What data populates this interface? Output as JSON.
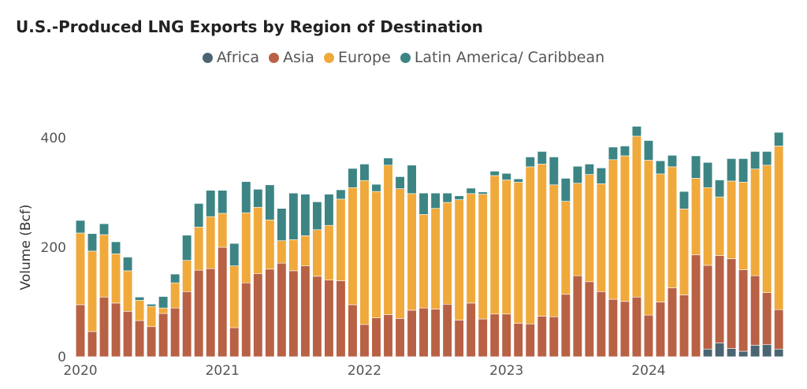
{
  "chart_data": {
    "type": "bar",
    "stacked": true,
    "title": "U.S.-Produced LNG Exports by Region of Destination",
    "xlabel": "",
    "ylabel": "Volume (Bcf)",
    "ylim": [
      0,
      430
    ],
    "yticks": [
      "0",
      "200",
      "400"
    ],
    "xticks": [
      "2020",
      "2021",
      "2022",
      "2023",
      "2024"
    ],
    "grid": false,
    "legend_position": "top-center",
    "start_month": "2020-01",
    "categories": [
      "2020-01",
      "2020-02",
      "2020-03",
      "2020-04",
      "2020-05",
      "2020-06",
      "2020-07",
      "2020-08",
      "2020-09",
      "2020-10",
      "2020-11",
      "2020-12",
      "2021-01",
      "2021-02",
      "2021-03",
      "2021-04",
      "2021-05",
      "2021-06",
      "2021-07",
      "2021-08",
      "2021-09",
      "2021-10",
      "2021-11",
      "2021-12",
      "2022-01",
      "2022-02",
      "2022-03",
      "2022-04",
      "2022-05",
      "2022-06",
      "2022-07",
      "2022-08",
      "2022-09",
      "2022-10",
      "2022-11",
      "2022-12",
      "2023-01",
      "2023-02",
      "2023-03",
      "2023-04",
      "2023-05",
      "2023-06",
      "2023-07",
      "2023-08",
      "2023-09",
      "2023-10",
      "2023-11",
      "2023-12",
      "2024-01",
      "2024-02",
      "2024-03",
      "2024-04",
      "2024-05",
      "2024-06",
      "2024-07",
      "2024-08",
      "2024-09",
      "2024-10",
      "2024-11",
      "2024-12"
    ],
    "series": [
      {
        "name": "Africa",
        "color": "#4a6571",
        "values": [
          0,
          0,
          0,
          0,
          0,
          0,
          0,
          0,
          0,
          0,
          0,
          0,
          0,
          0,
          0,
          0,
          0,
          0,
          0,
          0,
          0,
          0,
          0,
          0,
          0,
          0,
          0,
          0,
          0,
          0,
          0,
          0,
          0,
          0,
          0,
          0,
          0,
          0,
          0,
          0,
          0,
          0,
          0,
          0,
          0,
          0,
          0,
          0,
          0,
          0,
          0,
          0,
          0,
          14,
          25,
          15,
          10,
          21,
          22,
          14
        ]
      },
      {
        "name": "Asia",
        "color": "#b86145",
        "values": [
          95,
          46,
          109,
          98,
          83,
          66,
          55,
          79,
          89,
          119,
          158,
          161,
          200,
          53,
          135,
          152,
          160,
          171,
          157,
          166,
          147,
          140,
          139,
          95,
          59,
          71,
          77,
          70,
          85,
          89,
          87,
          96,
          67,
          98,
          69,
          78,
          78,
          61,
          60,
          74,
          73,
          114,
          148,
          137,
          119,
          105,
          101,
          109,
          76,
          100,
          126,
          113,
          186,
          153,
          160,
          164,
          149,
          127,
          95,
          72
        ]
      },
      {
        "name": "Europe",
        "color": "#f0a93b",
        "values": [
          131,
          147,
          114,
          90,
          74,
          37,
          37,
          10,
          46,
          57,
          79,
          95,
          62,
          113,
          128,
          121,
          90,
          41,
          57,
          55,
          85,
          100,
          149,
          214,
          263,
          231,
          273,
          237,
          213,
          171,
          184,
          186,
          220,
          200,
          228,
          253,
          245,
          258,
          287,
          278,
          241,
          170,
          169,
          196,
          197,
          255,
          266,
          294,
          283,
          234,
          221,
          157,
          140,
          142,
          107,
          142,
          160,
          195,
          233,
          299
        ]
      },
      {
        "name": "Latin America/ Caribbean",
        "color": "#3c8584",
        "values": [
          23,
          32,
          20,
          22,
          25,
          6,
          4,
          21,
          16,
          46,
          43,
          48,
          42,
          41,
          57,
          33,
          64,
          59,
          85,
          76,
          51,
          57,
          17,
          35,
          30,
          13,
          13,
          22,
          52,
          39,
          28,
          17,
          7,
          10,
          4,
          8,
          12,
          6,
          18,
          23,
          51,
          42,
          31,
          19,
          29,
          23,
          18,
          18,
          36,
          24,
          21,
          32,
          41,
          46,
          31,
          41,
          43,
          32,
          25,
          25
        ]
      }
    ]
  }
}
